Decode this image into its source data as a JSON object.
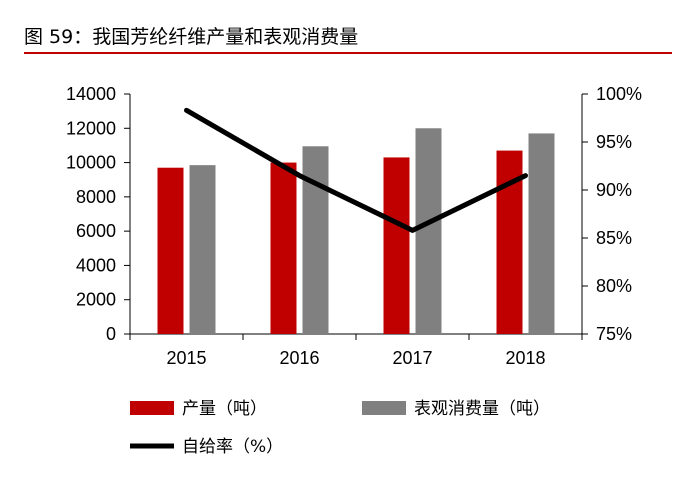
{
  "title": "图 59：我国芳纶纤维产量和表观消费量",
  "chart_data": {
    "type": "bar",
    "categories": [
      "2015",
      "2016",
      "2017",
      "2018"
    ],
    "series": [
      {
        "name": "产量（吨）",
        "type": "bar",
        "axis": "left",
        "color": "#c00000",
        "values": [
          9700,
          10000,
          10300,
          10700
        ]
      },
      {
        "name": "表观消费量（吨）",
        "type": "bar",
        "axis": "left",
        "color": "#808080",
        "values": [
          9850,
          10950,
          12000,
          11700
        ]
      },
      {
        "name": "自给率（%）",
        "type": "line",
        "axis": "right",
        "color": "#000000",
        "values": [
          98.3,
          91.5,
          85.8,
          91.5
        ]
      }
    ],
    "y_left": {
      "min": 0,
      "max": 14000,
      "step": 2000,
      "ticks": [
        "0",
        "2000",
        "4000",
        "6000",
        "8000",
        "10000",
        "12000",
        "14000"
      ]
    },
    "y_right": {
      "min": 75,
      "max": 100,
      "step": 5,
      "ticks": [
        "75%",
        "80%",
        "85%",
        "90%",
        "95%",
        "100%"
      ]
    },
    "grid": false,
    "legend_position": "bottom"
  }
}
